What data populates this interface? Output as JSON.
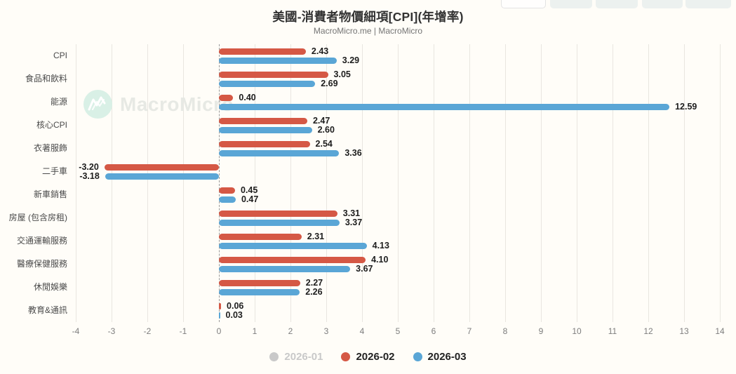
{
  "header": {
    "title": "美國-消費者物價細項[CPI](年增率)",
    "subtitle": "MacroMicro.me | MacroMicro"
  },
  "watermark": {
    "text": "MacroMicro",
    "logo": "macromicro-zigzag-logo",
    "circle_color": "#d9f0e6"
  },
  "chart_data": {
    "type": "bar",
    "orientation": "horizontal",
    "title": "美國-消費者物價細項[CPI](年增率)",
    "subtitle": "MacroMicro.me | MacroMicro",
    "categories": [
      "CPI",
      "食品和飲料",
      "能源",
      "核心CPI",
      "衣著服飾",
      "二手車",
      "新車銷售",
      "房屋 (包含房租)",
      "交通運輸服務",
      "醫療保健服務",
      "休閒娛樂",
      "教育&通訊"
    ],
    "series": [
      {
        "name": "2026-01",
        "color": "#c9c9c9",
        "disabled": true,
        "values": null,
        "labels": null
      },
      {
        "name": "2026-02",
        "color": "#d55845",
        "disabled": false,
        "values": [
          2.43,
          3.05,
          0.4,
          2.47,
          2.54,
          -3.2,
          0.45,
          3.31,
          2.31,
          4.1,
          2.27,
          0.06
        ],
        "labels": [
          "2.43",
          "3.05",
          "0.40",
          "2.47",
          "2.54",
          "-3.20",
          "0.45",
          "3.31",
          "2.31",
          "4.10",
          "2.27",
          "0.06"
        ]
      },
      {
        "name": "2026-03",
        "color": "#5aa6d6",
        "disabled": false,
        "values": [
          3.29,
          2.69,
          12.59,
          2.6,
          3.36,
          -3.18,
          0.47,
          3.37,
          4.13,
          3.67,
          2.26,
          0.03
        ],
        "labels": [
          "3.29",
          "2.69",
          "12.59",
          "2.60",
          "3.36",
          "-3.18",
          "0.47",
          "3.37",
          "4.13",
          "3.67",
          "2.26",
          "0.03"
        ]
      }
    ],
    "xlim": [
      -4,
      14
    ],
    "x_ticks": [
      -4,
      -3,
      -2,
      -1,
      0,
      1,
      2,
      3,
      4,
      5,
      6,
      7,
      8,
      9,
      10,
      11,
      12,
      13,
      14
    ],
    "grid": true,
    "zero_line": "dashed",
    "legend_position": "bottom"
  }
}
